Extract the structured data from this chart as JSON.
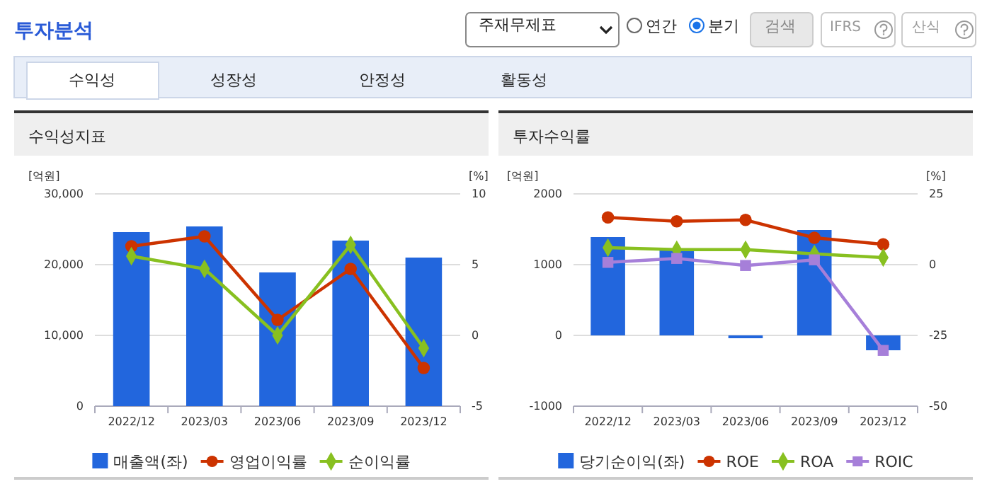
{
  "chart_data": [
    {
      "type": "bar",
      "title": "수익성지표",
      "categories": [
        "2022/12",
        "2023/03",
        "2023/06",
        "2023/09",
        "2023/12"
      ],
      "ylabel": "[억원]",
      "y2label": "[%]",
      "ylim": [
        0,
        30000
      ],
      "yticks": [
        0,
        {
          "value": 10000,
          "label": "10,000"
        },
        {
          "value": 20000,
          "label": "20,000"
        },
        {
          "value": 30000,
          "label": "30,000"
        }
      ],
      "y2lim": [
        -5,
        10
      ],
      "y2ticks": [
        -5,
        0,
        5,
        10
      ],
      "grid": "y",
      "legend": "bottom",
      "series": [
        {
          "name": "매출액(좌)",
          "color": "#2266dd",
          "values": [
            24600,
            25400,
            18900,
            23400,
            21000
          ]
        },
        {
          "name": "영업이익률",
          "type": "line",
          "axis": "y2",
          "marker": "circle",
          "color": "#cc3300",
          "values": [
            6.3,
            7.0,
            1.1,
            4.7,
            -2.3
          ]
        },
        {
          "name": "순이익률",
          "type": "line",
          "axis": "y2",
          "marker": "diamond",
          "color": "#88c020",
          "values": [
            5.6,
            4.7,
            0,
            6.4,
            -0.9
          ]
        }
      ],
      "annotations": [
        "투자분석",
        "주재무제표",
        "연간",
        "분기",
        "검색",
        "IFRS",
        "산식",
        "수익성",
        "성장성",
        "안정성",
        "활동성"
      ]
    },
    {
      "type": "bar",
      "title": "투자수익률",
      "categories": [
        "2022/12",
        "2023/03",
        "2023/06",
        "2023/09",
        "2023/12"
      ],
      "ylabel": "[억원]",
      "y2label": "[%]",
      "ylim": [
        -1000,
        2000
      ],
      "yticks": [
        -1000,
        0,
        1000,
        2000
      ],
      "y2lim": [
        -50,
        25
      ],
      "y2ticks": [
        -50,
        -25,
        0,
        25
      ],
      "grid": "y",
      "legend": "bottom",
      "series": [
        {
          "name": "당기순이익(좌)",
          "color": "#2266dd",
          "values": [
            1390,
            1210,
            -40,
            1490,
            -210
          ]
        },
        {
          "name": "ROE",
          "type": "line",
          "axis": "y2",
          "marker": "circle",
          "color": "#cc3300",
          "values": [
            16.7,
            15.3,
            15.8,
            9.5,
            7.2
          ]
        },
        {
          "name": "ROA",
          "type": "line",
          "axis": "y2",
          "marker": "diamond",
          "color": "#88c020",
          "values": [
            6.0,
            5.3,
            5.3,
            3.8,
            2.5
          ]
        },
        {
          "name": "ROIC",
          "type": "line",
          "axis": "y2",
          "marker": "square",
          "color": "#a67fd9",
          "values": [
            0.8,
            2.2,
            -0.3,
            1.7,
            -30.3
          ]
        }
      ]
    }
  ]
}
